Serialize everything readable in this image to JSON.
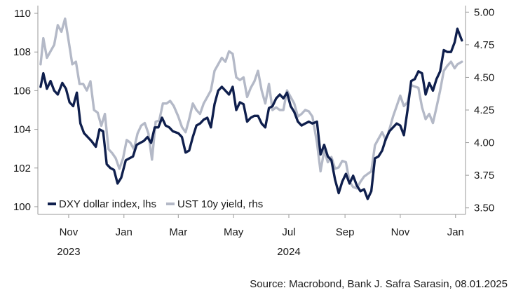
{
  "chart_data": {
    "type": "line",
    "x_axis": {
      "month_labels": [
        "Nov",
        "Jan",
        "Mar",
        "May",
        "Jul",
        "Sep",
        "Nov",
        "Jan"
      ],
      "month_dates": [
        "2023-11",
        "2024-01",
        "2024-03",
        "2024-05",
        "2024-07",
        "2024-09",
        "2024-11",
        "2025-01"
      ],
      "year_labels": [
        {
          "label": "2023",
          "date": "2023-11"
        },
        {
          "label": "2024",
          "date": "2024-07"
        }
      ]
    },
    "y_left": {
      "ticks": [
        100,
        102,
        104,
        106,
        108,
        110
      ],
      "range": [
        99.6,
        110.4
      ]
    },
    "y_right": {
      "ticks": [
        "3.50",
        "3.75",
        "4.00",
        "4.25",
        "4.50",
        "4.75",
        "5.00"
      ],
      "range": [
        3.45,
        5.05
      ]
    },
    "legend_position": "bottom-left",
    "series": [
      {
        "name": "DXY dollar index, lhs",
        "axis": "left",
        "color": "#0f1f4d",
        "points": [
          [
            "2023-10-01",
            106.2
          ],
          [
            "2023-10-04",
            106.9
          ],
          [
            "2023-10-08",
            106.1
          ],
          [
            "2023-10-12",
            106.5
          ],
          [
            "2023-10-16",
            106.0
          ],
          [
            "2023-10-20",
            105.8
          ],
          [
            "2023-10-25",
            106.4
          ],
          [
            "2023-10-29",
            106.1
          ],
          [
            "2023-11-02",
            105.4
          ],
          [
            "2023-11-06",
            105.2
          ],
          [
            "2023-11-10",
            105.9
          ],
          [
            "2023-11-14",
            104.3
          ],
          [
            "2023-11-18",
            103.8
          ],
          [
            "2023-11-22",
            103.6
          ],
          [
            "2023-11-26",
            103.4
          ],
          [
            "2023-12-01",
            103.1
          ],
          [
            "2023-12-05",
            104.0
          ],
          [
            "2023-12-09",
            103.9
          ],
          [
            "2023-12-13",
            102.2
          ],
          [
            "2023-12-17",
            102.0
          ],
          [
            "2023-12-21",
            101.9
          ],
          [
            "2023-12-25",
            101.2
          ],
          [
            "2023-12-29",
            101.5
          ],
          [
            "2024-01-03",
            102.4
          ],
          [
            "2024-01-07",
            102.5
          ],
          [
            "2024-01-11",
            102.6
          ],
          [
            "2024-01-15",
            103.2
          ],
          [
            "2024-01-19",
            103.3
          ],
          [
            "2024-01-23",
            103.4
          ],
          [
            "2024-01-27",
            103.6
          ],
          [
            "2024-01-31",
            103.3
          ],
          [
            "2024-02-04",
            104.1
          ],
          [
            "2024-02-08",
            104.1
          ],
          [
            "2024-02-12",
            104.6
          ],
          [
            "2024-02-16",
            104.2
          ],
          [
            "2024-02-20",
            104.1
          ],
          [
            "2024-02-24",
            103.9
          ],
          [
            "2024-03-01",
            103.8
          ],
          [
            "2024-03-05",
            103.6
          ],
          [
            "2024-03-09",
            102.8
          ],
          [
            "2024-03-13",
            102.9
          ],
          [
            "2024-03-17",
            103.6
          ],
          [
            "2024-03-21",
            104.2
          ],
          [
            "2024-03-25",
            104.3
          ],
          [
            "2024-03-29",
            104.5
          ],
          [
            "2024-04-02",
            104.6
          ],
          [
            "2024-04-06",
            104.1
          ],
          [
            "2024-04-10",
            105.3
          ],
          [
            "2024-04-14",
            106.0
          ],
          [
            "2024-04-18",
            106.2
          ],
          [
            "2024-04-22",
            106.0
          ],
          [
            "2024-04-26",
            105.8
          ],
          [
            "2024-04-30",
            106.2
          ],
          [
            "2024-05-04",
            105.0
          ],
          [
            "2024-05-08",
            105.4
          ],
          [
            "2024-05-12",
            105.3
          ],
          [
            "2024-05-16",
            104.4
          ],
          [
            "2024-05-20",
            104.6
          ],
          [
            "2024-05-24",
            104.7
          ],
          [
            "2024-05-28",
            104.7
          ],
          [
            "2024-06-01",
            104.3
          ],
          [
            "2024-06-05",
            104.1
          ],
          [
            "2024-06-09",
            105.1
          ],
          [
            "2024-06-13",
            105.2
          ],
          [
            "2024-06-17",
            105.6
          ],
          [
            "2024-06-21",
            105.8
          ],
          [
            "2024-06-25",
            105.6
          ],
          [
            "2024-06-29",
            105.9
          ],
          [
            "2024-07-03",
            105.2
          ],
          [
            "2024-07-07",
            104.9
          ],
          [
            "2024-07-11",
            104.4
          ],
          [
            "2024-07-15",
            104.2
          ],
          [
            "2024-07-19",
            104.3
          ],
          [
            "2024-07-23",
            104.4
          ],
          [
            "2024-07-27",
            104.3
          ],
          [
            "2024-08-01",
            104.4
          ],
          [
            "2024-08-05",
            102.7
          ],
          [
            "2024-08-09",
            103.2
          ],
          [
            "2024-08-13",
            102.6
          ],
          [
            "2024-08-17",
            102.4
          ],
          [
            "2024-08-21",
            101.4
          ],
          [
            "2024-08-25",
            100.7
          ],
          [
            "2024-08-29",
            101.3
          ],
          [
            "2024-09-02",
            101.7
          ],
          [
            "2024-09-06",
            101.2
          ],
          [
            "2024-09-10",
            101.6
          ],
          [
            "2024-09-14",
            101.1
          ],
          [
            "2024-09-18",
            100.8
          ],
          [
            "2024-09-22",
            100.9
          ],
          [
            "2024-09-26",
            100.4
          ],
          [
            "2024-09-30",
            100.8
          ],
          [
            "2024-10-04",
            102.5
          ],
          [
            "2024-10-08",
            102.6
          ],
          [
            "2024-10-12",
            102.9
          ],
          [
            "2024-10-16",
            103.5
          ],
          [
            "2024-10-20",
            103.9
          ],
          [
            "2024-10-24",
            104.1
          ],
          [
            "2024-10-28",
            104.3
          ],
          [
            "2024-11-01",
            104.2
          ],
          [
            "2024-11-05",
            103.7
          ],
          [
            "2024-11-09",
            105.0
          ],
          [
            "2024-11-13",
            106.5
          ],
          [
            "2024-11-17",
            106.6
          ],
          [
            "2024-11-21",
            107.0
          ],
          [
            "2024-11-25",
            106.9
          ],
          [
            "2024-11-29",
            105.8
          ],
          [
            "2024-12-03",
            106.4
          ],
          [
            "2024-12-07",
            106.0
          ],
          [
            "2024-12-11",
            106.6
          ],
          [
            "2024-12-15",
            107.0
          ],
          [
            "2024-12-19",
            108.1
          ],
          [
            "2024-12-23",
            108.0
          ],
          [
            "2024-12-27",
            108.0
          ],
          [
            "2024-12-31",
            108.5
          ],
          [
            "2025-01-03",
            109.2
          ],
          [
            "2025-01-08",
            108.6
          ]
        ]
      },
      {
        "name": "UST 10y yield, rhs",
        "axis": "right",
        "color": "#b4b9c7",
        "points": [
          [
            "2023-10-01",
            4.6
          ],
          [
            "2023-10-04",
            4.8
          ],
          [
            "2023-10-08",
            4.65
          ],
          [
            "2023-10-12",
            4.7
          ],
          [
            "2023-10-16",
            4.75
          ],
          [
            "2023-10-20",
            4.9
          ],
          [
            "2023-10-24",
            4.85
          ],
          [
            "2023-10-28",
            4.95
          ],
          [
            "2023-11-01",
            4.78
          ],
          [
            "2023-11-05",
            4.6
          ],
          [
            "2023-11-09",
            4.62
          ],
          [
            "2023-11-13",
            4.45
          ],
          [
            "2023-11-17",
            4.45
          ],
          [
            "2023-11-21",
            4.4
          ],
          [
            "2023-11-25",
            4.47
          ],
          [
            "2023-11-29",
            4.25
          ],
          [
            "2023-12-03",
            4.23
          ],
          [
            "2023-12-07",
            4.13
          ],
          [
            "2023-12-11",
            4.22
          ],
          [
            "2023-12-15",
            3.95
          ],
          [
            "2023-12-19",
            3.92
          ],
          [
            "2023-12-23",
            3.88
          ],
          [
            "2023-12-27",
            3.8
          ],
          [
            "2023-12-31",
            3.88
          ],
          [
            "2024-01-04",
            4.02
          ],
          [
            "2024-01-08",
            4.0
          ],
          [
            "2024-01-12",
            3.95
          ],
          [
            "2024-01-16",
            4.07
          ],
          [
            "2024-01-20",
            4.13
          ],
          [
            "2024-01-24",
            4.15
          ],
          [
            "2024-01-28",
            4.07
          ],
          [
            "2024-02-01",
            3.87
          ],
          [
            "2024-02-05",
            4.16
          ],
          [
            "2024-02-09",
            4.17
          ],
          [
            "2024-02-13",
            4.3
          ],
          [
            "2024-02-17",
            4.3
          ],
          [
            "2024-02-21",
            4.32
          ],
          [
            "2024-02-25",
            4.28
          ],
          [
            "2024-03-01",
            4.2
          ],
          [
            "2024-03-05",
            4.12
          ],
          [
            "2024-03-09",
            4.08
          ],
          [
            "2024-03-13",
            4.18
          ],
          [
            "2024-03-17",
            4.3
          ],
          [
            "2024-03-21",
            4.25
          ],
          [
            "2024-03-25",
            4.22
          ],
          [
            "2024-03-29",
            4.3
          ],
          [
            "2024-04-02",
            4.35
          ],
          [
            "2024-04-06",
            4.4
          ],
          [
            "2024-04-10",
            4.55
          ],
          [
            "2024-04-14",
            4.6
          ],
          [
            "2024-04-18",
            4.65
          ],
          [
            "2024-04-22",
            4.62
          ],
          [
            "2024-04-26",
            4.7
          ],
          [
            "2024-04-30",
            4.68
          ],
          [
            "2024-05-04",
            4.5
          ],
          [
            "2024-05-08",
            4.48
          ],
          [
            "2024-05-12",
            4.5
          ],
          [
            "2024-05-16",
            4.35
          ],
          [
            "2024-05-20",
            4.42
          ],
          [
            "2024-05-24",
            4.47
          ],
          [
            "2024-05-28",
            4.55
          ],
          [
            "2024-06-01",
            4.4
          ],
          [
            "2024-06-05",
            4.3
          ],
          [
            "2024-06-09",
            4.45
          ],
          [
            "2024-06-13",
            4.25
          ],
          [
            "2024-06-17",
            4.27
          ],
          [
            "2024-06-21",
            4.25
          ],
          [
            "2024-06-25",
            4.25
          ],
          [
            "2024-06-29",
            4.4
          ],
          [
            "2024-07-03",
            4.35
          ],
          [
            "2024-07-07",
            4.3
          ],
          [
            "2024-07-11",
            4.2
          ],
          [
            "2024-07-15",
            4.22
          ],
          [
            "2024-07-19",
            4.25
          ],
          [
            "2024-07-23",
            4.24
          ],
          [
            "2024-07-27",
            4.2
          ],
          [
            "2024-08-01",
            4.0
          ],
          [
            "2024-08-05",
            3.78
          ],
          [
            "2024-08-09",
            3.94
          ],
          [
            "2024-08-13",
            3.85
          ],
          [
            "2024-08-17",
            3.89
          ],
          [
            "2024-08-21",
            3.8
          ],
          [
            "2024-08-25",
            3.81
          ],
          [
            "2024-08-29",
            3.86
          ],
          [
            "2024-09-02",
            3.85
          ],
          [
            "2024-09-06",
            3.7
          ],
          [
            "2024-09-10",
            3.66
          ],
          [
            "2024-09-14",
            3.65
          ],
          [
            "2024-09-18",
            3.7
          ],
          [
            "2024-09-22",
            3.74
          ],
          [
            "2024-09-26",
            3.76
          ],
          [
            "2024-09-30",
            3.78
          ],
          [
            "2024-10-04",
            3.98
          ],
          [
            "2024-10-08",
            4.03
          ],
          [
            "2024-10-12",
            4.08
          ],
          [
            "2024-10-16",
            4.02
          ],
          [
            "2024-10-20",
            4.1
          ],
          [
            "2024-10-24",
            4.2
          ],
          [
            "2024-10-28",
            4.28
          ],
          [
            "2024-11-01",
            4.36
          ],
          [
            "2024-11-05",
            4.28
          ],
          [
            "2024-11-09",
            4.31
          ],
          [
            "2024-11-13",
            4.44
          ],
          [
            "2024-11-17",
            4.43
          ],
          [
            "2024-11-21",
            4.42
          ],
          [
            "2024-11-25",
            4.27
          ],
          [
            "2024-11-29",
            4.18
          ],
          [
            "2024-12-03",
            4.22
          ],
          [
            "2024-12-07",
            4.15
          ],
          [
            "2024-12-11",
            4.27
          ],
          [
            "2024-12-15",
            4.4
          ],
          [
            "2024-12-19",
            4.55
          ],
          [
            "2024-12-23",
            4.59
          ],
          [
            "2024-12-27",
            4.62
          ],
          [
            "2024-12-31",
            4.57
          ],
          [
            "2025-01-03",
            4.6
          ],
          [
            "2025-01-08",
            4.62
          ]
        ]
      }
    ]
  },
  "footer": {
    "source": "Source: Macrobond, Bank J. Safra Sarasin, 08.01.2025"
  }
}
